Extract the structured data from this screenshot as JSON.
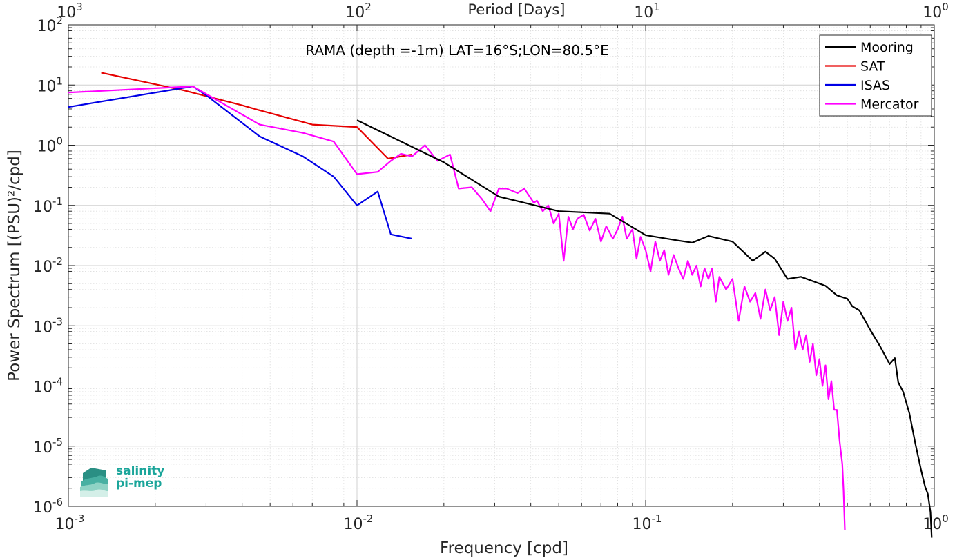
{
  "chart_data": {
    "type": "line",
    "title": "RAMA (depth =-1m) LAT=16°S;LON=80.5°E",
    "xlabel": "Frequency [cpd]",
    "ylabel": "Power Spectrum [(PSU)²/cpd]",
    "x2label": "Period [Days]",
    "xscale": "log",
    "yscale": "log",
    "xlim": [
      0.001,
      1
    ],
    "ylim": [
      1e-06,
      100
    ],
    "x_ticks": [
      0.001,
      0.01,
      0.1,
      1
    ],
    "x_tick_labels": [
      {
        "base": "10",
        "exp": "-3"
      },
      {
        "base": "10",
        "exp": "-2"
      },
      {
        "base": "10",
        "exp": "-1"
      },
      {
        "base": "10",
        "exp": "0"
      }
    ],
    "x2_ticks": [
      1000,
      100,
      10,
      1
    ],
    "x2_tick_labels": [
      {
        "base": "10",
        "exp": "3"
      },
      {
        "base": "10",
        "exp": "2"
      },
      {
        "base": "10",
        "exp": "1"
      },
      {
        "base": "10",
        "exp": "0"
      }
    ],
    "y_ticks": [
      1e-06,
      1e-05,
      0.0001,
      0.001,
      0.01,
      0.1,
      1,
      10,
      100
    ],
    "y_tick_labels": [
      {
        "base": "10",
        "exp": "-6"
      },
      {
        "base": "10",
        "exp": "-5"
      },
      {
        "base": "10",
        "exp": "-4"
      },
      {
        "base": "10",
        "exp": "-3"
      },
      {
        "base": "10",
        "exp": "-2"
      },
      {
        "base": "10",
        "exp": "-1"
      },
      {
        "base": "10",
        "exp": "0"
      },
      {
        "base": "10",
        "exp": "1"
      },
      {
        "base": "10",
        "exp": "2"
      }
    ],
    "grid": true,
    "legend_position": "top-right",
    "series": [
      {
        "name": "Mooring",
        "color": "#000000",
        "x": [
          0.01,
          0.02,
          0.031,
          0.05,
          0.075,
          0.1,
          0.13,
          0.145,
          0.165,
          0.2,
          0.235,
          0.26,
          0.28,
          0.31,
          0.345,
          0.38,
          0.42,
          0.46,
          0.5,
          0.52,
          0.55,
          0.6,
          0.65,
          0.7,
          0.73,
          0.75,
          0.78,
          0.82,
          0.86,
          0.9,
          0.93,
          0.95,
          0.97,
          0.98
        ],
        "y": [
          2.6,
          0.52,
          0.14,
          0.08,
          0.073,
          0.032,
          0.026,
          0.024,
          0.031,
          0.025,
          0.012,
          0.017,
          0.013,
          0.006,
          0.0065,
          0.0055,
          0.0046,
          0.0032,
          0.0028,
          0.0021,
          0.0018,
          0.00085,
          0.00045,
          0.00023,
          0.00029,
          0.000115,
          8e-05,
          3.5e-05,
          1.1e-05,
          4e-06,
          2.1e-06,
          1.6e-06,
          8e-07,
          3e-07
        ]
      },
      {
        "name": "SAT",
        "color": "#e60000",
        "x": [
          0.0013,
          0.0025,
          0.004,
          0.0046,
          0.007,
          0.01,
          0.0128,
          0.0155
        ],
        "y": [
          16,
          8.2,
          4.6,
          3.8,
          2.2,
          2.0,
          0.6,
          0.7
        ]
      },
      {
        "name": "ISAS",
        "color": "#0000e6",
        "x": [
          0.001,
          0.0027,
          0.003,
          0.0046,
          0.0065,
          0.0083,
          0.01,
          0.0118,
          0.0131,
          0.0155
        ],
        "y": [
          4.3,
          9.5,
          6.8,
          1.4,
          0.65,
          0.3,
          0.1,
          0.17,
          0.033,
          0.028
        ]
      },
      {
        "name": "Mercator",
        "color": "#ff00ff",
        "x": [
          0.001,
          0.0027,
          0.0046,
          0.0065,
          0.0083,
          0.01,
          0.0118,
          0.0131,
          0.0142,
          0.0155,
          0.0172,
          0.019,
          0.021,
          0.0225,
          0.025,
          0.027,
          0.029,
          0.031,
          0.033,
          0.036,
          0.038,
          0.041,
          0.042,
          0.044,
          0.046,
          0.048,
          0.05,
          0.052,
          0.054,
          0.056,
          0.058,
          0.061,
          0.064,
          0.067,
          0.07,
          0.073,
          0.077,
          0.08,
          0.083,
          0.086,
          0.09,
          0.093,
          0.096,
          0.1,
          0.104,
          0.108,
          0.112,
          0.116,
          0.12,
          0.125,
          0.13,
          0.135,
          0.14,
          0.145,
          0.15,
          0.155,
          0.16,
          0.165,
          0.17,
          0.175,
          0.18,
          0.19,
          0.2,
          0.21,
          0.22,
          0.23,
          0.24,
          0.25,
          0.26,
          0.27,
          0.28,
          0.29,
          0.3,
          0.31,
          0.32,
          0.33,
          0.34,
          0.35,
          0.36,
          0.37,
          0.38,
          0.39,
          0.4,
          0.41,
          0.42,
          0.43,
          0.44,
          0.45,
          0.46,
          0.47,
          0.48,
          0.485,
          0.49
        ],
        "y": [
          7.5,
          9.5,
          2.2,
          1.6,
          1.15,
          0.33,
          0.36,
          0.55,
          0.72,
          0.65,
          1.0,
          0.55,
          0.7,
          0.19,
          0.2,
          0.13,
          0.08,
          0.19,
          0.19,
          0.16,
          0.19,
          0.11,
          0.12,
          0.08,
          0.1,
          0.05,
          0.073,
          0.012,
          0.065,
          0.04,
          0.06,
          0.07,
          0.038,
          0.06,
          0.025,
          0.045,
          0.028,
          0.04,
          0.065,
          0.028,
          0.04,
          0.013,
          0.03,
          0.018,
          0.008,
          0.025,
          0.012,
          0.018,
          0.007,
          0.015,
          0.009,
          0.006,
          0.012,
          0.007,
          0.01,
          0.0045,
          0.009,
          0.006,
          0.009,
          0.0025,
          0.0065,
          0.004,
          0.006,
          0.0012,
          0.0045,
          0.0025,
          0.0035,
          0.0013,
          0.004,
          0.0018,
          0.003,
          0.0007,
          0.0025,
          0.0012,
          0.002,
          0.0004,
          0.0008,
          0.0004,
          0.0007,
          0.00025,
          0.0005,
          0.00015,
          0.00028,
          0.0001,
          0.00022,
          6e-05,
          0.00012,
          4e-05,
          4e-05,
          1.2e-05,
          5e-06,
          1.8e-06,
          4e-07
        ]
      }
    ]
  }
}
